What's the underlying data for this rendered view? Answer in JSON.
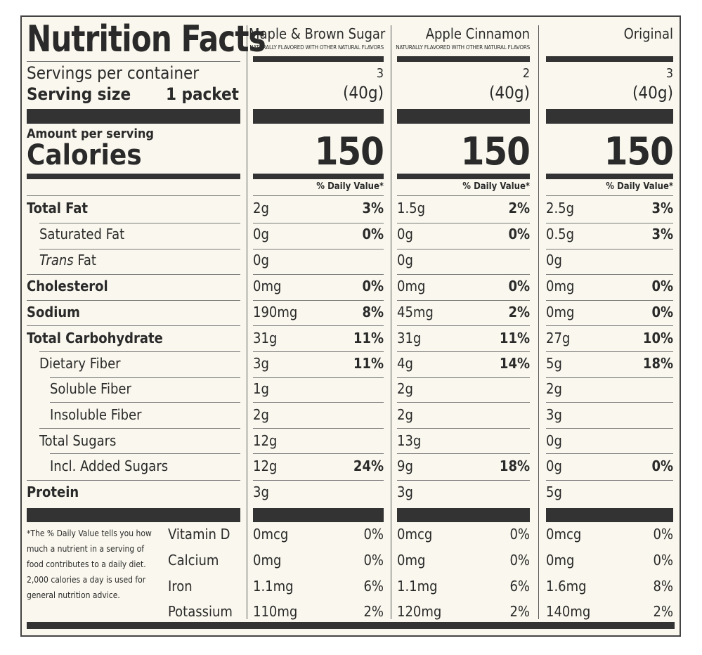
{
  "title": "Nutrition Facts",
  "servings_label": "Servings per container",
  "serving_size_label": "Serving size",
  "serving_size_value": "1 packet",
  "amount_per_serving": "Amount per serving",
  "calories_label": "Calories",
  "dv_header": "% Daily Value*",
  "columns": [
    {
      "name": "Maple & Brown Sugar",
      "sub": "NATURALLY FLAVORED WITH OTHER NATURAL FLAVORS",
      "servings": "3",
      "size": "(40g)",
      "calories": "150"
    },
    {
      "name": "Apple Cinnamon",
      "sub": "NATURALLY FLAVORED WITH OTHER NATURAL FLAVORS",
      "servings": "2",
      "size": "(40g)",
      "calories": "150"
    },
    {
      "name": "Original",
      "sub": "",
      "servings": "3",
      "size": "(40g)",
      "calories": "150"
    }
  ],
  "nutrients": [
    {
      "label": "Total Fat",
      "values": [
        [
          "2g",
          "3%"
        ],
        [
          "1.5g",
          "2%"
        ],
        [
          "2.5g",
          "3%"
        ]
      ]
    },
    {
      "label": "Saturated Fat",
      "values": [
        [
          "0g",
          "0%"
        ],
        [
          "0g",
          "0%"
        ],
        [
          "0.5g",
          "3%"
        ]
      ]
    },
    {
      "label": "Trans",
      "label_suffix": " Fat",
      "values": [
        [
          "0g",
          ""
        ],
        [
          "0g",
          ""
        ],
        [
          "0g",
          ""
        ]
      ]
    },
    {
      "label": "Cholesterol",
      "values": [
        [
          "0mg",
          "0%"
        ],
        [
          "0mg",
          "0%"
        ],
        [
          "0mg",
          "0%"
        ]
      ]
    },
    {
      "label": "Sodium",
      "values": [
        [
          "190mg",
          "8%"
        ],
        [
          "45mg",
          "2%"
        ],
        [
          "0mg",
          "0%"
        ]
      ]
    },
    {
      "label": "Total Carbohydrate",
      "values": [
        [
          "31g",
          "11%"
        ],
        [
          "31g",
          "11%"
        ],
        [
          "27g",
          "10%"
        ]
      ]
    },
    {
      "label": "Dietary Fiber",
      "values": [
        [
          "3g",
          "11%"
        ],
        [
          "4g",
          "14%"
        ],
        [
          "5g",
          "18%"
        ]
      ]
    },
    {
      "label": "Soluble Fiber",
      "values": [
        [
          "1g",
          ""
        ],
        [
          "2g",
          ""
        ],
        [
          "2g",
          ""
        ]
      ]
    },
    {
      "label": "Insoluble Fiber",
      "values": [
        [
          "2g",
          ""
        ],
        [
          "2g",
          ""
        ],
        [
          "3g",
          ""
        ]
      ]
    },
    {
      "label": "Total Sugars",
      "values": [
        [
          "12g",
          ""
        ],
        [
          "13g",
          ""
        ],
        [
          "0g",
          ""
        ]
      ]
    },
    {
      "label": "Incl. Added Sugars",
      "values": [
        [
          "12g",
          "24%"
        ],
        [
          "9g",
          "18%"
        ],
        [
          "0g",
          "0%"
        ]
      ]
    },
    {
      "label": "Protein",
      "values": [
        [
          "3g",
          ""
        ],
        [
          "3g",
          ""
        ],
        [
          "5g",
          ""
        ]
      ]
    }
  ],
  "vitamins": [
    {
      "label": "Vitamin D",
      "values": [
        [
          "0mcg",
          "0%"
        ],
        [
          "0mcg",
          "0%"
        ],
        [
          "0mcg",
          "0%"
        ]
      ]
    },
    {
      "label": "Calcium",
      "values": [
        [
          "0mg",
          "0%"
        ],
        [
          "0mg",
          "0%"
        ],
        [
          "0mg",
          "0%"
        ]
      ]
    },
    {
      "label": "Iron",
      "values": [
        [
          "1.1mg",
          "6%"
        ],
        [
          "1.1mg",
          "6%"
        ],
        [
          "1.6mg",
          "8%"
        ]
      ]
    },
    {
      "label": "Potassium",
      "values": [
        [
          "110mg",
          "2%"
        ],
        [
          "120mg",
          "2%"
        ],
        [
          "140mg",
          "2%"
        ]
      ]
    }
  ],
  "footnote": "*The % Daily Value tells you how much a nutrient in a serving of food contributes to a daily diet. 2,000 calories a day is used for general nutrition advice."
}
